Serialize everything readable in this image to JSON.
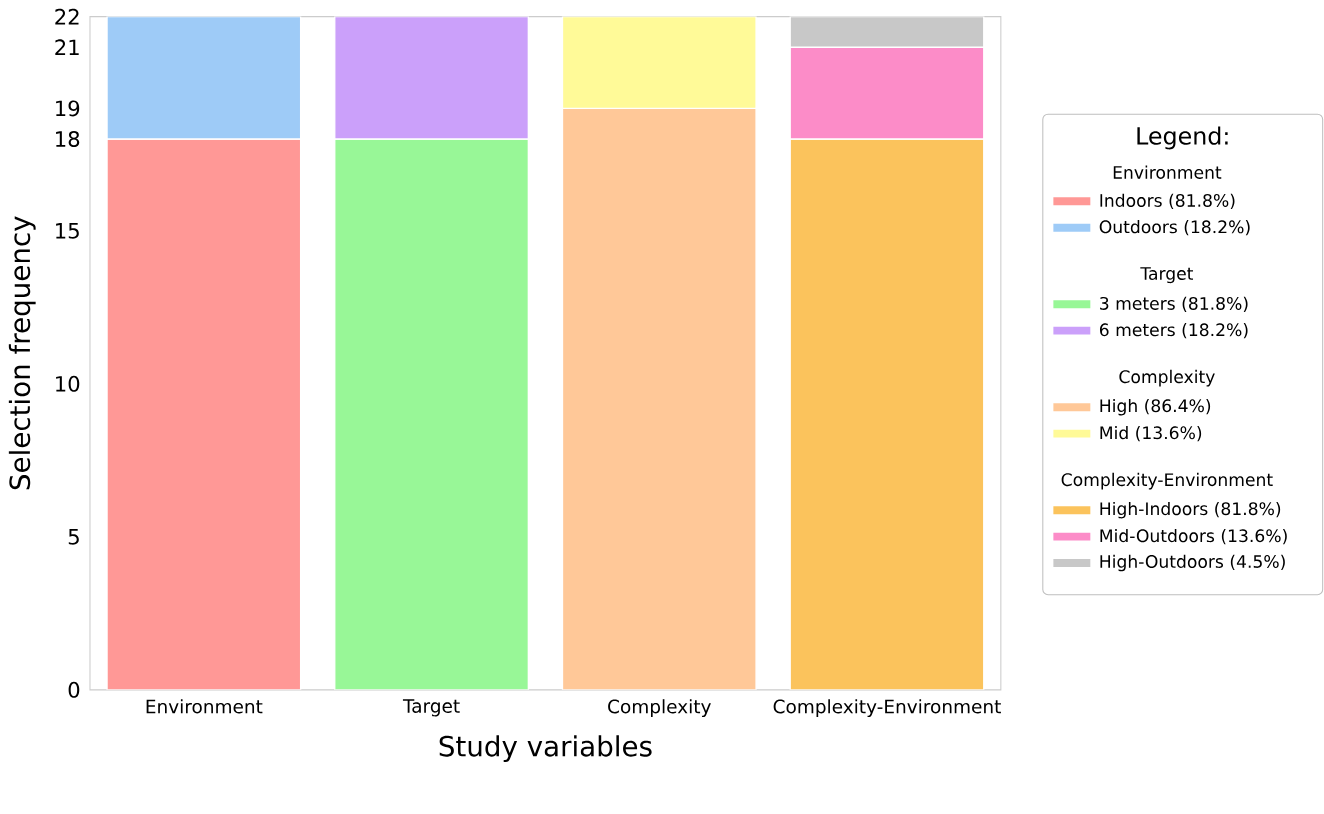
{
  "chart_data": {
    "type": "bar",
    "stacked": true,
    "xlabel": "Study variables",
    "ylabel": "Selection frequency",
    "categories": [
      "Environment",
      "Target",
      "Complexity",
      "Complexity-Environment"
    ],
    "ylim": [
      0,
      22
    ],
    "yticks": [
      0,
      5,
      10,
      15,
      18,
      19,
      21,
      22
    ],
    "legend": "right",
    "legend_title": "Legend:",
    "series": [
      {
        "name": "Indoors (81.8%)",
        "color": "#ff9896",
        "values": [
          18,
          null,
          null,
          null
        ]
      },
      {
        "name": "Outdoors (18.2%)",
        "color": "#9ecbf7",
        "values": [
          4,
          null,
          null,
          null
        ]
      },
      {
        "name": "3 meters (81.8%)",
        "color": "#98f797",
        "values": [
          null,
          18,
          null,
          null
        ]
      },
      {
        "name": "6 meters (18.2%)",
        "color": "#cba0fa",
        "values": [
          null,
          4,
          null,
          null
        ]
      },
      {
        "name": "High (86.4%)",
        "color": "#ffc898",
        "values": [
          null,
          null,
          19,
          null
        ]
      },
      {
        "name": "Mid (13.6%)",
        "color": "#fffa98",
        "values": [
          null,
          null,
          3,
          null
        ]
      },
      {
        "name": "High-Indoors (81.8%)",
        "color": "#fbc35c",
        "values": [
          null,
          null,
          null,
          18
        ]
      },
      {
        "name": "Mid-Outdoors (13.6%)",
        "color": "#fc8cc8",
        "values": [
          null,
          null,
          null,
          3
        ]
      },
      {
        "name": "High-Outdoors (4.5%)",
        "color": "#c8c8c8",
        "values": [
          null,
          null,
          null,
          1
        ]
      }
    ]
  }
}
